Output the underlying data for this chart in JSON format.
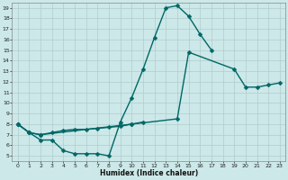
{
  "xlabel": "Humidex (Indice chaleur)",
  "bg_color": "#cce8e8",
  "grid_color": "#b0cccc",
  "line_color": "#006666",
  "xlim": [
    -0.5,
    23.5
  ],
  "ylim": [
    4.5,
    19.5
  ],
  "xticks": [
    0,
    1,
    2,
    3,
    4,
    5,
    6,
    7,
    8,
    9,
    10,
    11,
    12,
    13,
    14,
    15,
    16,
    17,
    18,
    19,
    20,
    21,
    22,
    23
  ],
  "yticks": [
    5,
    6,
    7,
    8,
    9,
    10,
    11,
    12,
    13,
    14,
    15,
    16,
    17,
    18,
    19
  ],
  "curve1_x": [
    0,
    1,
    2,
    3,
    4,
    5,
    6,
    7,
    8,
    9,
    10,
    11,
    12,
    13,
    14,
    15,
    16,
    17
  ],
  "curve1_y": [
    8.0,
    7.2,
    6.5,
    6.5,
    5.5,
    5.2,
    5.2,
    5.2,
    5.0,
    8.2,
    10.5,
    13.2,
    16.2,
    19.0,
    19.2,
    18.2,
    16.5,
    15.0
  ],
  "curve2_x": [
    0,
    1,
    2,
    3,
    4,
    5,
    6,
    7,
    8,
    9,
    10,
    11
  ],
  "curve2_y": [
    8.0,
    7.2,
    7.0,
    7.2,
    7.4,
    7.5,
    7.5,
    7.6,
    7.7,
    7.8,
    8.0,
    8.2
  ],
  "curve3_x": [
    0,
    1,
    2,
    10,
    14,
    15,
    19,
    20,
    21,
    22,
    23
  ],
  "curve3_y": [
    8.0,
    7.2,
    7.0,
    8.0,
    8.5,
    14.8,
    13.2,
    11.5,
    11.5,
    11.7,
    11.9
  ],
  "markersize": 2.5,
  "linewidth": 1.0
}
